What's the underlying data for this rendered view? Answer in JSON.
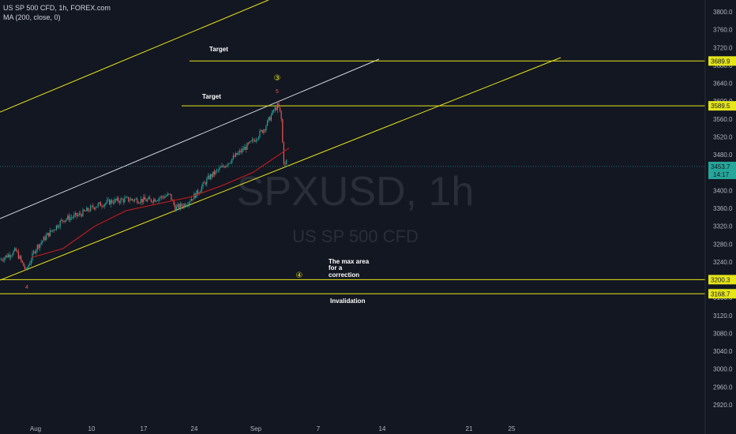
{
  "header": {
    "symbol_line": "US SP 500 CFD, 1h, FOREX.com",
    "indicator_line": "MA (200, close, 0)"
  },
  "watermark": {
    "ticker": "SPXUSD, 1h",
    "name": "US SP 500 CFD"
  },
  "colors": {
    "background": "#131722",
    "channel_yellow": "#e5e51a",
    "channel_white": "#d1d4dc",
    "ma_red": "#b71c1c",
    "up_candle": "#26a69a",
    "down_candle": "#ef5350",
    "price_label": "#26a69a"
  },
  "chart_data": {
    "type": "candlestick",
    "y_axis": {
      "ticks": [
        3800,
        3760,
        3720,
        3680,
        3640,
        3600,
        3560,
        3520,
        3480,
        3440,
        3400,
        3360,
        3320,
        3280,
        3240,
        3200,
        3160,
        3120,
        3080,
        3040,
        3000,
        2960,
        2920
      ]
    },
    "x_axis": {
      "ticks": [
        "Aug",
        "10",
        "17",
        "24",
        "Sep",
        "7",
        "14",
        "21",
        "25"
      ]
    },
    "price_path": [
      [
        0,
        3245
      ],
      [
        20,
        3265
      ],
      [
        33,
        3220
      ],
      [
        45,
        3270
      ],
      [
        60,
        3300
      ],
      [
        80,
        3335
      ],
      [
        100,
        3345
      ],
      [
        120,
        3365
      ],
      [
        140,
        3375
      ],
      [
        160,
        3380
      ],
      [
        190,
        3378
      ],
      [
        215,
        3390
      ],
      [
        222,
        3360
      ],
      [
        235,
        3370
      ],
      [
        250,
        3395
      ],
      [
        265,
        3430
      ],
      [
        280,
        3450
      ],
      [
        300,
        3480
      ],
      [
        320,
        3510
      ],
      [
        335,
        3540
      ],
      [
        347,
        3580
      ],
      [
        352,
        3590
      ],
      [
        356,
        3565
      ],
      [
        358,
        3500
      ],
      [
        360,
        3450
      ],
      [
        364,
        3475
      ]
    ],
    "moving_average": {
      "name": "MA (200, close, 0)",
      "points": [
        [
          40,
          3250
        ],
        [
          80,
          3270
        ],
        [
          120,
          3320
        ],
        [
          160,
          3355
        ],
        [
          200,
          3370
        ],
        [
          240,
          3385
        ],
        [
          280,
          3410
        ],
        [
          320,
          3440
        ],
        [
          345,
          3470
        ],
        [
          366,
          3495
        ]
      ]
    },
    "horizontal_levels": [
      {
        "value": 3689.9,
        "label": "3689.9"
      },
      {
        "value": 3589.5,
        "label": "3589.5"
      },
      {
        "value": 3200.3,
        "label": "3200.3"
      },
      {
        "value": 3168.7,
        "label": "3168.7"
      }
    ],
    "last_price": {
      "value": 3453.7,
      "label": "3453.7",
      "countdown": "14:17"
    },
    "annotations": {
      "target_upper": "Target",
      "target_lower": "Target",
      "wave3": "③",
      "wave5": "5",
      "wave4_low": "4",
      "wave4_circle": "④",
      "correction_line1": "The max area",
      "correction_line2": "for a",
      "correction_line3": "correction",
      "invalidation": "Invalidation"
    }
  }
}
